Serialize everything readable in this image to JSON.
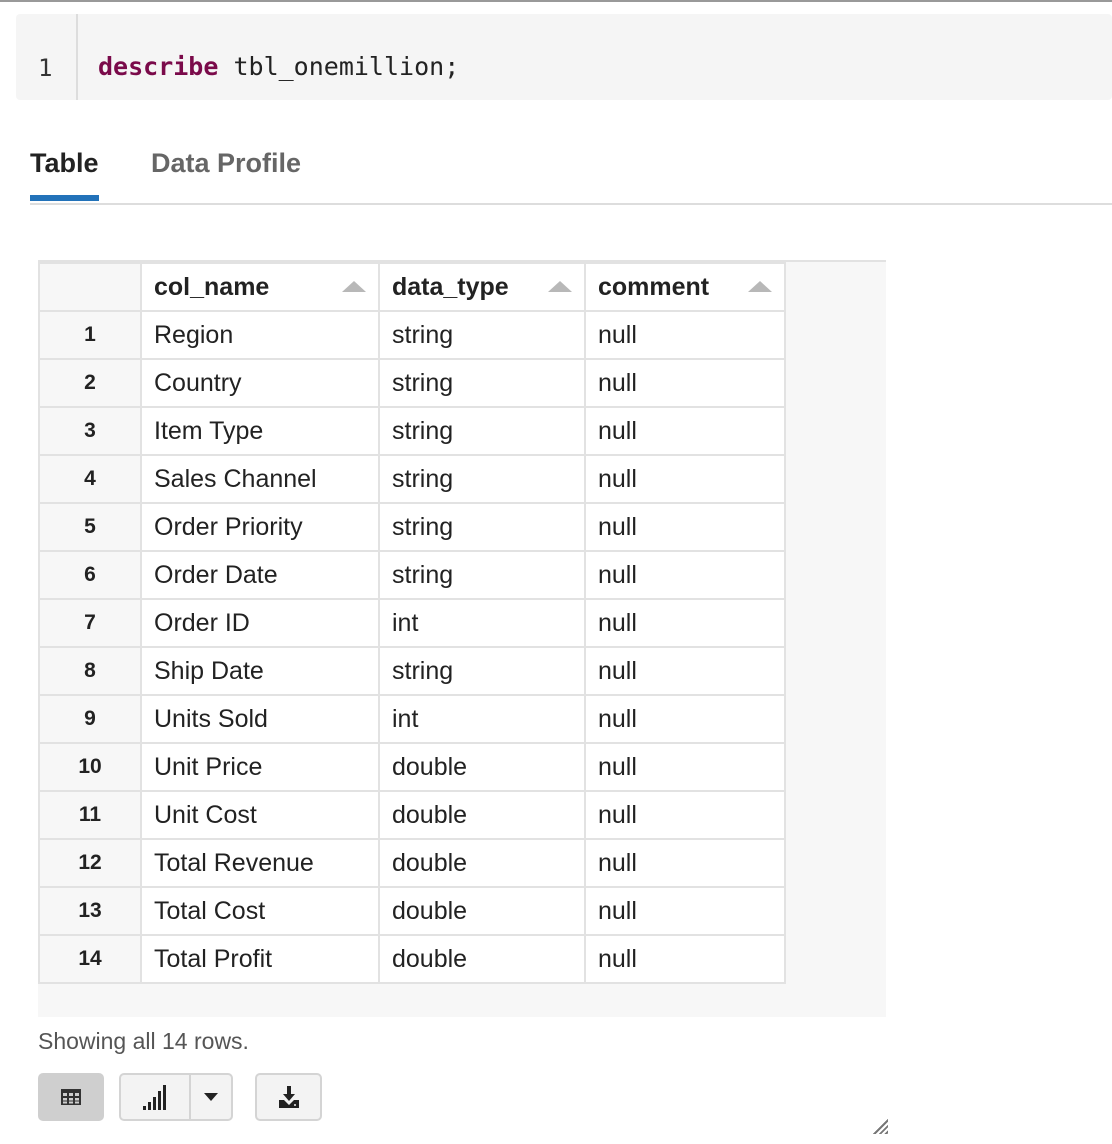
{
  "editor": {
    "line_number": "1",
    "keyword": "describe",
    "rest": " tbl_onemillion;"
  },
  "tabs": [
    {
      "label": "Table",
      "active": true
    },
    {
      "label": "Data Profile",
      "active": false
    }
  ],
  "table": {
    "headers": [
      "col_name",
      "data_type",
      "comment"
    ],
    "rows": [
      [
        "1",
        "Region",
        "string",
        "null"
      ],
      [
        "2",
        "Country",
        "string",
        "null"
      ],
      [
        "3",
        "Item Type",
        "string",
        "null"
      ],
      [
        "4",
        "Sales Channel",
        "string",
        "null"
      ],
      [
        "5",
        "Order Priority",
        "string",
        "null"
      ],
      [
        "6",
        "Order Date",
        "string",
        "null"
      ],
      [
        "7",
        "Order ID",
        "int",
        "null"
      ],
      [
        "8",
        "Ship Date",
        "string",
        "null"
      ],
      [
        "9",
        "Units Sold",
        "int",
        "null"
      ],
      [
        "10",
        "Unit Price",
        "double",
        "null"
      ],
      [
        "11",
        "Unit Cost",
        "double",
        "null"
      ],
      [
        "12",
        "Total Revenue",
        "double",
        "null"
      ],
      [
        "13",
        "Total Cost",
        "double",
        "null"
      ],
      [
        "14",
        "Total Profit",
        "double",
        "null"
      ]
    ]
  },
  "status": "Showing all 14 rows.",
  "toolbar": {
    "icons": [
      "table-icon",
      "bar-chart-icon",
      "caret-down-icon",
      "download-icon"
    ]
  },
  "colors": {
    "keyword": "#7a0a4a",
    "accent": "#2272b9"
  }
}
